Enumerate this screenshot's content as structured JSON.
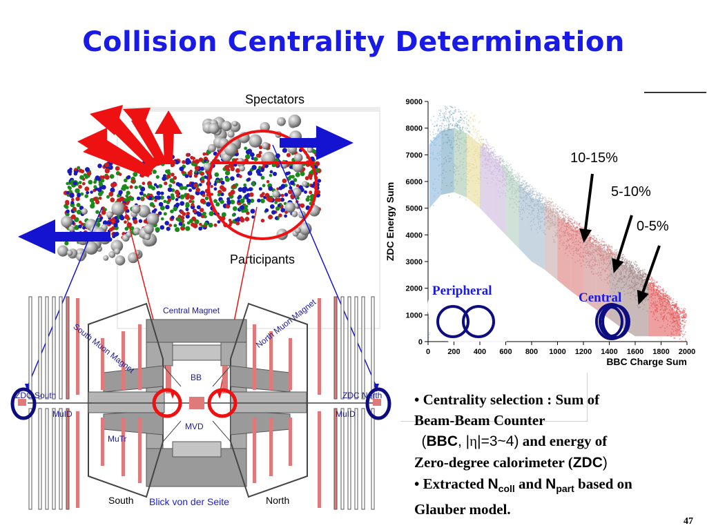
{
  "title": "Collision Centrality Determination",
  "labels": {
    "spectators": "Spectators",
    "participants": "Participants"
  },
  "detector": {
    "central_magnet": "Central Magnet",
    "south_muon_magnet": "South Muon Magnet",
    "north_muon_magnet": "North Muon Magnet",
    "bb": "BB",
    "mvd": "MVD",
    "zdc_south": "ZDC South",
    "zdc_north": "ZDC North",
    "muid_left": "MuID",
    "muid_right": "MuID",
    "mutr": "MuTr",
    "south": "South",
    "north": "North",
    "caption": "Blick von der Seite"
  },
  "chart": {
    "ylabel": "ZDC Energy Sum",
    "xlabel": "BBC Charge Sum",
    "x_ticks": [
      "0",
      "200",
      "400",
      "600",
      "800",
      "1000",
      "1200",
      "1400",
      "1600",
      "1800",
      "2000"
    ],
    "y_ticks": [
      "0",
      "1000",
      "2000",
      "3000",
      "4000",
      "5000",
      "6000",
      "7000",
      "8000",
      "9000"
    ],
    "annotations": [
      "10-15%",
      "5-10%",
      "0-5%"
    ],
    "peripheral": "Peripheral",
    "central": "Central"
  },
  "chart_data": {
    "type": "scatter",
    "xlabel": "BBC Charge Sum",
    "ylabel": "ZDC Energy Sum",
    "xlim": [
      0,
      2000
    ],
    "ylim": [
      0,
      9000
    ],
    "ridge_points": [
      {
        "x": 10,
        "y": 7400
      },
      {
        "x": 100,
        "y": 7900
      },
      {
        "x": 200,
        "y": 8000
      },
      {
        "x": 300,
        "y": 7800
      },
      {
        "x": 400,
        "y": 7400
      },
      {
        "x": 500,
        "y": 6900
      },
      {
        "x": 600,
        "y": 6400
      },
      {
        "x": 700,
        "y": 5900
      },
      {
        "x": 800,
        "y": 5400
      },
      {
        "x": 900,
        "y": 5100
      },
      {
        "x": 1000,
        "y": 4700
      },
      {
        "x": 1100,
        "y": 4300
      },
      {
        "x": 1200,
        "y": 3950
      },
      {
        "x": 1300,
        "y": 3600
      },
      {
        "x": 1400,
        "y": 3250
      },
      {
        "x": 1500,
        "y": 2900
      },
      {
        "x": 1600,
        "y": 2600
      },
      {
        "x": 1700,
        "y": 2200
      },
      {
        "x": 1800,
        "y": 1700
      },
      {
        "x": 1900,
        "y": 1200
      },
      {
        "x": 1950,
        "y": 900
      }
    ],
    "annotations": [
      "10-15%",
      "5-10%",
      "0-5%"
    ]
  },
  "bullets": {
    "b1_l1": "• Centrality selection : Sum of",
    "b1_l2": "Beam-Beam Counter",
    "b1_l3_open": "(",
    "b1_l3_bbc": "BBC",
    "b1_l3_comma": ", |",
    "b1_l3_eta": "η",
    "b1_l3_range": "|=3~4)",
    "b1_l3_rest": " and energy of",
    "b1_l4": "Zero-degree calorimeter (",
    "b1_l4_zdc": "ZDC",
    "b1_l4_close": ")",
    "b2_l1_a": "• Extracted ",
    "b2_ncoll": "N",
    "b2_ncoll_sub": "coll",
    "b2_and": " and ",
    "b2_npart": "N",
    "b2_npart_sub": "part",
    "b2_based": " based on",
    "b2_l2": "Glauber model."
  },
  "page_number": "47",
  "colors": {
    "title": "#1a1ae6",
    "arrow_red": "#ee1111",
    "arrow_blue": "#1414d0",
    "circle_navy": "#0d0d80",
    "magnet_pink": "#e07a7a",
    "steel": "#9a9a9a"
  }
}
